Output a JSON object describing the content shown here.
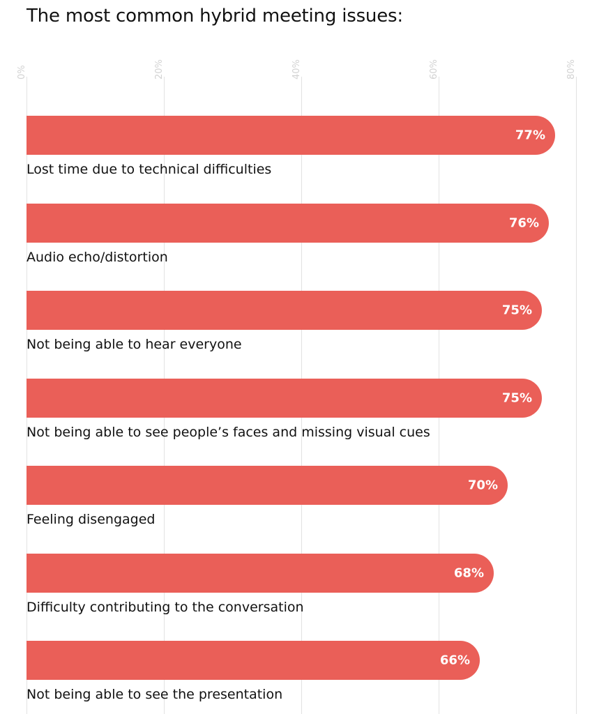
{
  "chart_data": {
    "type": "bar",
    "orientation": "horizontal",
    "title": "The most common hybrid meeting issues:",
    "xlim": [
      0,
      80
    ],
    "grid": true,
    "x_ticks": [
      "0%",
      "20%",
      "40%",
      "60%",
      "80%"
    ],
    "categories": [
      "Lost time due to technical difficulties",
      "Audio echo/distortion",
      "Not being able to hear everyone",
      "Not being able to see people’s faces and missing visual cues",
      "Feeling disengaged",
      "Difficulty contributing to the conversation",
      "Not being able to see the presentation"
    ],
    "values": [
      77,
      76,
      75,
      75,
      70,
      68,
      66
    ],
    "value_labels": [
      "77%",
      "76%",
      "75%",
      "75%",
      "70%",
      "68%",
      "66%"
    ],
    "bar_color": "#ea5f58",
    "value_label_color": "#ffffff"
  }
}
